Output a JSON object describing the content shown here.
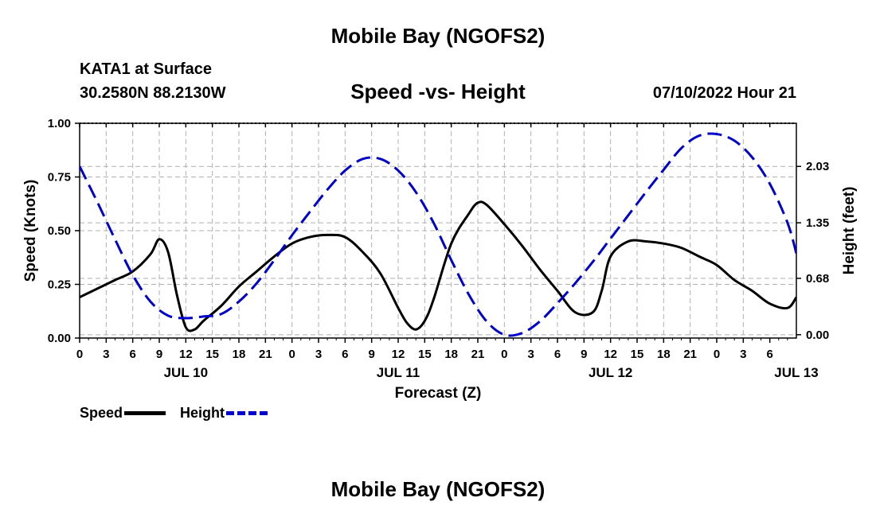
{
  "header": {
    "title": "Mobile Bay (NGOFS2)",
    "station": "KATA1 at Surface",
    "coords": "30.2580N  88.2130W",
    "subtitle": "Speed -vs- Height",
    "datetime": "07/10/2022 Hour 21"
  },
  "footer": {
    "title": "Mobile Bay (NGOFS2)"
  },
  "legend": {
    "speed_label": "Speed",
    "height_label": "Height"
  },
  "colors": {
    "speed": "#000000",
    "height": "#0000cc",
    "grid": "#b0b0b0"
  },
  "chart_data": {
    "type": "line",
    "title": "Speed -vs- Height",
    "xlabel": "Forecast (Z)",
    "ylabel_left": "Speed (Knots)",
    "ylabel_right": "Height (feet)",
    "x_unit": "hours from Jul 9 21Z",
    "xlim": [
      0,
      81
    ],
    "ylim_left": [
      0,
      1.0
    ],
    "ylim_right": [
      -0.04,
      2.55
    ],
    "x_tick_labels": [
      "0",
      "3",
      "6",
      "9",
      "12",
      "15",
      "18",
      "21",
      "0",
      "3",
      "6",
      "9",
      "12",
      "15",
      "18",
      "21",
      "0",
      "3",
      "6",
      "9",
      "12",
      "15",
      "18",
      "21",
      "0",
      "3",
      "6"
    ],
    "day_labels": [
      {
        "label": "JUL 10",
        "x": 12
      },
      {
        "label": "JUL 11",
        "x": 36
      },
      {
        "label": "JUL 12",
        "x": 60
      },
      {
        "label": "JUL 13",
        "x": 81
      }
    ],
    "left_ticks": [
      "0.00",
      "0.25",
      "0.50",
      "0.75",
      "1.00"
    ],
    "left_tick_values": [
      0,
      0.25,
      0.5,
      0.75,
      1.0
    ],
    "right_ticks": [
      "0.00",
      "0.68",
      "1.35",
      "2.03"
    ],
    "right_tick_values": [
      0,
      0.68,
      1.35,
      2.03
    ],
    "series": [
      {
        "name": "Speed",
        "axis": "left",
        "x": [
          0,
          2,
          4,
          6,
          8,
          9,
          10,
          11,
          12,
          13,
          14,
          16,
          18,
          20,
          22,
          24,
          26,
          28,
          30,
          32,
          34,
          36,
          37,
          38,
          39,
          40,
          42,
          44,
          45,
          46,
          48,
          50,
          52,
          54,
          56,
          58,
          59,
          60,
          62,
          64,
          66,
          68,
          70,
          72,
          74,
          76,
          78,
          80,
          81
        ],
        "values": [
          0.19,
          0.23,
          0.27,
          0.31,
          0.39,
          0.46,
          0.4,
          0.2,
          0.05,
          0.04,
          0.08,
          0.15,
          0.24,
          0.31,
          0.38,
          0.44,
          0.47,
          0.48,
          0.47,
          0.4,
          0.3,
          0.14,
          0.07,
          0.04,
          0.08,
          0.18,
          0.44,
          0.58,
          0.63,
          0.62,
          0.53,
          0.43,
          0.32,
          0.22,
          0.12,
          0.12,
          0.22,
          0.38,
          0.45,
          0.45,
          0.44,
          0.42,
          0.38,
          0.34,
          0.27,
          0.22,
          0.16,
          0.14,
          0.19
        ]
      },
      {
        "name": "Height",
        "axis": "right",
        "x": [
          0,
          2,
          4,
          6,
          8,
          10,
          12,
          14,
          16,
          18,
          20,
          22,
          24,
          26,
          28,
          30,
          32,
          34,
          36,
          38,
          40,
          42,
          44,
          46,
          48,
          50,
          52,
          54,
          56,
          58,
          60,
          62,
          64,
          66,
          68,
          70,
          72,
          74,
          76,
          78,
          80,
          81
        ],
        "values": [
          2.03,
          1.6,
          1.15,
          0.72,
          0.4,
          0.23,
          0.2,
          0.22,
          0.25,
          0.4,
          0.62,
          0.9,
          1.2,
          1.48,
          1.75,
          1.98,
          2.12,
          2.12,
          1.98,
          1.72,
          1.35,
          0.9,
          0.48,
          0.16,
          0.0,
          0.02,
          0.16,
          0.38,
          0.62,
          0.88,
          1.16,
          1.44,
          1.72,
          1.99,
          2.25,
          2.4,
          2.42,
          2.34,
          2.14,
          1.82,
          1.35,
          0.98
        ]
      }
    ]
  }
}
